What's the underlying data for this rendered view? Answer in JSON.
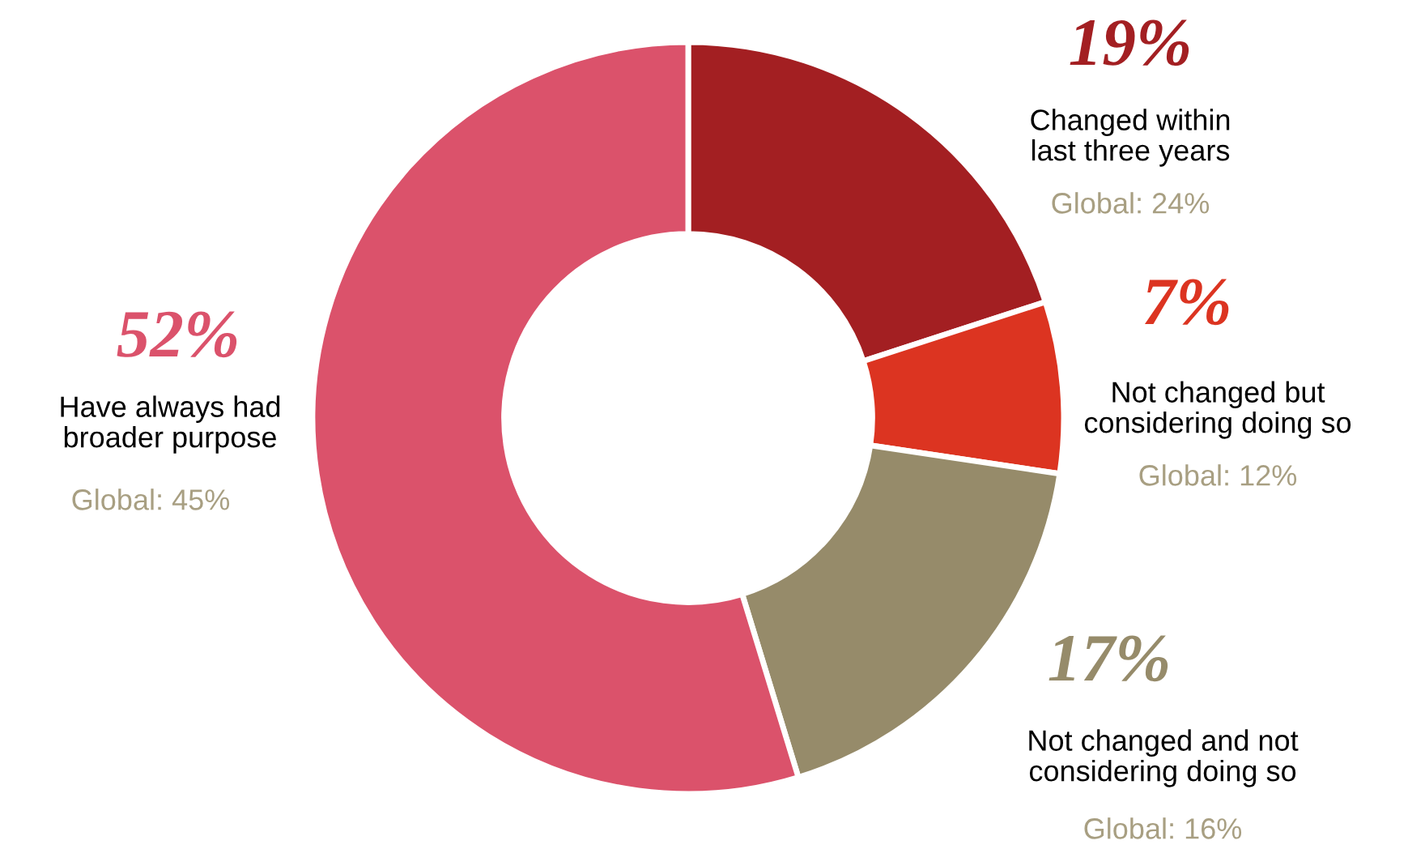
{
  "chart_data": {
    "type": "donut",
    "categories": [
      "Changed within\nlast three years",
      "Not changed but\nconsidering doing so",
      "Not changed and not\nconsidering doing so",
      "Have always had\nbroader purpose"
    ],
    "values": [
      19,
      7,
      17,
      52
    ],
    "value_labels": [
      "19%",
      "7%",
      "17%",
      "52%"
    ],
    "colors": [
      "#a31f22",
      "#dc3421",
      "#968b6a",
      "#db526b"
    ],
    "annotations": [
      "Global: 24%",
      "Global: 12%",
      "Global: 16%",
      "Global: 45%"
    ],
    "legend": false
  }
}
